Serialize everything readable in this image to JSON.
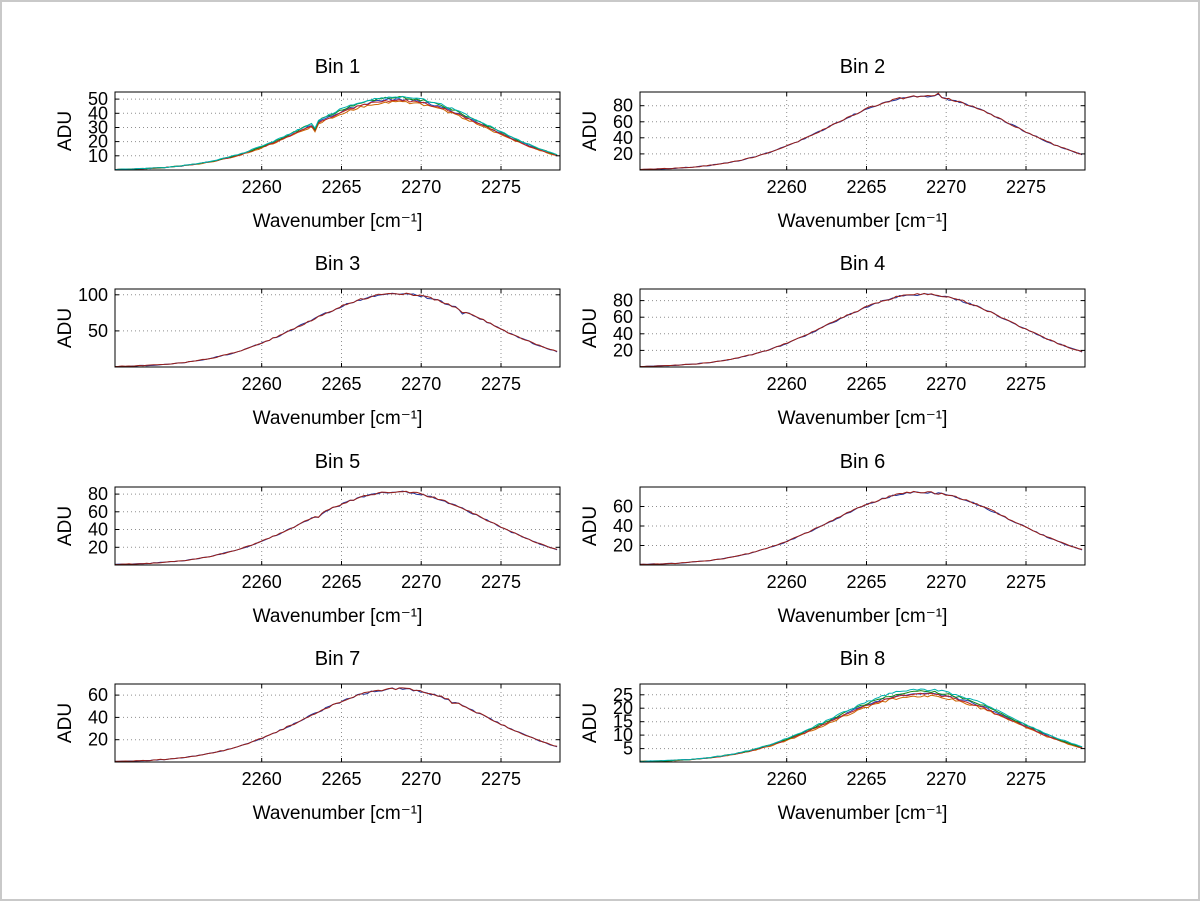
{
  "chart_data": {
    "type": "line",
    "x": {
      "label": "Wavenumber [cm⁻¹]",
      "ticks": [
        2260,
        2265,
        2270,
        2275
      ],
      "range": [
        2250.8,
        2278.7
      ]
    },
    "y_label": "ADU",
    "profile": {
      "x_start": 2251,
      "x_step": 1,
      "values": [
        0.0084,
        0.0142,
        0.0234,
        0.0374,
        0.058,
        0.087,
        0.1266,
        0.1786,
        0.2441,
        0.3234,
        0.4152,
        0.5168,
        0.6234,
        0.7288,
        0.8258,
        0.9069,
        0.9654,
        0.9961,
        0.9961,
        0.9654,
        0.9069,
        0.8258,
        0.7288,
        0.6234,
        0.5168,
        0.4152,
        0.3234,
        0.2441,
        0.1786
      ]
    },
    "plots": [
      {
        "title": "Bin 1",
        "peak": 52,
        "ylim": [
          0,
          55
        ],
        "yticks": [
          10,
          20,
          30,
          40,
          50
        ],
        "noise": 0.8,
        "spikes": [
          {
            "x": 2263.35,
            "dy": -5
          }
        ],
        "series": [
          {
            "color": "#2244bb",
            "scale": 0.96
          },
          {
            "color": "#cc6600",
            "scale": 0.925
          },
          {
            "color": "#bb2222",
            "scale": 0.945
          },
          {
            "color": "#118811",
            "scale": 0.985
          },
          {
            "color": "#00b0b0",
            "scale": 1.0
          }
        ]
      },
      {
        "title": "Bin 2",
        "peak": 92,
        "ylim": [
          0,
          97
        ],
        "yticks": [
          20,
          40,
          60,
          80
        ],
        "noise": 1.3,
        "spikes": [
          {
            "x": 2269.45,
            "dy": 5
          }
        ],
        "series": [
          {
            "color": "#223399",
            "scale": 0.998
          },
          {
            "color": "#99201a",
            "scale": 1.0
          }
        ]
      },
      {
        "title": "Bin 3",
        "peak": 102,
        "ylim": [
          0,
          108
        ],
        "yticks": [
          50,
          100
        ],
        "noise": 1.6,
        "spikes": [
          {
            "x": 2272.6,
            "dy": -4
          }
        ],
        "series": [
          {
            "color": "#223399",
            "scale": 0.998
          },
          {
            "color": "#99201a",
            "scale": 1.0
          }
        ]
      },
      {
        "title": "Bin 4",
        "peak": 88,
        "ylim": [
          0,
          94
        ],
        "yticks": [
          20,
          40,
          60,
          80
        ],
        "noise": 1.3,
        "spikes": [],
        "series": [
          {
            "color": "#223399",
            "scale": 0.998
          },
          {
            "color": "#99201a",
            "scale": 1.0
          }
        ]
      },
      {
        "title": "Bin 5",
        "peak": 83,
        "ylim": [
          0,
          88
        ],
        "yticks": [
          20,
          40,
          60,
          80
        ],
        "noise": 1.2,
        "spikes": [
          {
            "x": 2263.5,
            "dy": -2.5
          }
        ],
        "series": [
          {
            "color": "#223399",
            "scale": 0.998
          },
          {
            "color": "#99201a",
            "scale": 1.0
          }
        ]
      },
      {
        "title": "Bin 6",
        "peak": 75,
        "ylim": [
          0,
          80
        ],
        "yticks": [
          20,
          40,
          60
        ],
        "noise": 1.1,
        "spikes": [],
        "series": [
          {
            "color": "#223399",
            "scale": 0.998
          },
          {
            "color": "#99201a",
            "scale": 1.0
          }
        ]
      },
      {
        "title": "Bin 7",
        "peak": 66,
        "ylim": [
          0,
          70
        ],
        "yticks": [
          20,
          40,
          60
        ],
        "noise": 1.0,
        "spikes": [
          {
            "x": 2271.9,
            "dy": -2
          }
        ],
        "series": [
          {
            "color": "#223399",
            "scale": 0.998
          },
          {
            "color": "#99201a",
            "scale": 1.0
          }
        ]
      },
      {
        "title": "Bin 8",
        "peak": 27,
        "ylim": [
          0,
          29
        ],
        "yticks": [
          5,
          10,
          15,
          20,
          25
        ],
        "noise": 0.45,
        "spikes": [],
        "series": [
          {
            "color": "#2244bb",
            "scale": 0.95
          },
          {
            "color": "#cc6600",
            "scale": 0.915
          },
          {
            "color": "#bb2222",
            "scale": 0.935
          },
          {
            "color": "#118811",
            "scale": 0.975
          },
          {
            "color": "#00b0b0",
            "scale": 1.0
          }
        ]
      }
    ]
  }
}
